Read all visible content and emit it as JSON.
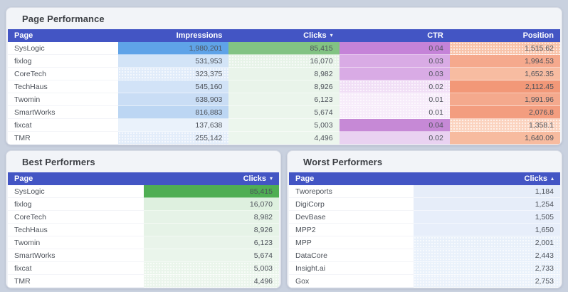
{
  "theme": {
    "page_bg": "#c9d1df",
    "panel_bg": "#f2f4f8",
    "header_bg": "#4355c4",
    "header_text": "#ffffff"
  },
  "page_performance": {
    "title": "Page Performance",
    "columns": [
      {
        "label": "Page"
      },
      {
        "label": "Impressions"
      },
      {
        "label": "Clicks",
        "sort_icon": "▾"
      },
      {
        "label": "CTR"
      },
      {
        "label": "Position"
      }
    ],
    "rows": [
      {
        "page": "SysLogic",
        "impressions": "1,980,201",
        "clicks": "85,415",
        "ctr": "0.04",
        "position": "1,515.62",
        "colors": {
          "impressions": "#5fa3e8",
          "clicks": "#82c383",
          "ctr": "#c583d8",
          "position": "#f8c3aa"
        },
        "dots": [
          "position"
        ]
      },
      {
        "page": "fixlog",
        "impressions": "531,953",
        "clicks": "16,070",
        "ctr": "0.03",
        "position": "1,994.53",
        "colors": {
          "impressions": "#d3e4f7",
          "clicks": "#e7f3e8",
          "ctr": "#d9abe5",
          "position": "#f5a98d"
        },
        "dots": [
          "clicks"
        ]
      },
      {
        "page": "CoreTech",
        "impressions": "323,375",
        "clicks": "8,982",
        "ctr": "0.03",
        "position": "1,652.35",
        "colors": {
          "impressions": "#e1ecfa",
          "clicks": "#e9f4ea",
          "ctr": "#d9abe5",
          "position": "#f7bca1"
        },
        "dots": [
          "impressions"
        ]
      },
      {
        "page": "TechHaus",
        "impressions": "545,160",
        "clicks": "8,926",
        "ctr": "0.02",
        "position": "2,112.45",
        "colors": {
          "impressions": "#d2e3f7",
          "clicks": "#e9f4ea",
          "ctr": "#f1dff6",
          "position": "#f29878"
        },
        "dots": [
          "ctr"
        ]
      },
      {
        "page": "Twomin",
        "impressions": "638,903",
        "clicks": "6,123",
        "ctr": "0.01",
        "position": "1,991.96",
        "colors": {
          "impressions": "#c9ddf5",
          "clicks": "#ebf5ec",
          "ctr": "#f7ecfa",
          "position": "#f4a98d"
        },
        "dots": [
          "ctr"
        ]
      },
      {
        "page": "SmartWorks",
        "impressions": "816,883",
        "clicks": "5,674",
        "ctr": "0.01",
        "position": "2,076.8",
        "colors": {
          "impressions": "#bcd6f3",
          "clicks": "#ebf5ec",
          "ctr": "#f7ecfa",
          "position": "#f39d7f"
        },
        "dots": [
          "ctr"
        ]
      },
      {
        "page": "fixcat",
        "impressions": "137,638",
        "clicks": "5,003",
        "ctr": "0.04",
        "position": "1,358.1",
        "colors": {
          "impressions": "#eaf2fb",
          "clicks": "#ecf6ed",
          "ctr": "#c689d6",
          "position": "#fbd3bf"
        },
        "dots": [
          "position"
        ]
      },
      {
        "page": "TMR",
        "impressions": "255,142",
        "clicks": "4,496",
        "ctr": "0.02",
        "position": "1,640.09",
        "colors": {
          "impressions": "#e3edfa",
          "clicks": "#ecf6ed",
          "ctr": "#e9d2f1",
          "position": "#f7bb9f"
        },
        "dots": [
          "impressions"
        ]
      }
    ]
  },
  "best_performers": {
    "title": "Best Performers",
    "columns": [
      {
        "label": "Page"
      },
      {
        "label": "Clicks",
        "sort_icon": "▾"
      }
    ],
    "rows": [
      {
        "page": "SysLogic",
        "clicks": "85,415",
        "colors": {
          "clicks": "#4fae53"
        }
      },
      {
        "page": "fixlog",
        "clicks": "16,070",
        "colors": {
          "clicks": "#def0df"
        }
      },
      {
        "page": "CoreTech",
        "clicks": "8,982",
        "colors": {
          "clicks": "#e6f3e7"
        }
      },
      {
        "page": "TechHaus",
        "clicks": "8,926",
        "colors": {
          "clicks": "#e6f3e7"
        }
      },
      {
        "page": "Twomin",
        "clicks": "6,123",
        "colors": {
          "clicks": "#e9f4ea"
        }
      },
      {
        "page": "SmartWorks",
        "clicks": "5,674",
        "colors": {
          "clicks": "#eaf5eb"
        }
      },
      {
        "page": "fixcat",
        "clicks": "5,003",
        "colors": {
          "clicks": "#eaf5eb"
        },
        "dots": [
          "clicks"
        ]
      },
      {
        "page": "TMR",
        "clicks": "4,496",
        "colors": {
          "clicks": "#ebf5ec"
        },
        "dots": [
          "clicks"
        ]
      }
    ]
  },
  "worst_performers": {
    "title": "Worst Performers",
    "columns": [
      {
        "label": "Page"
      },
      {
        "label": "Clicks",
        "sort_icon": "▴"
      }
    ],
    "rows": [
      {
        "page": "Tworeports",
        "clicks": "1,184",
        "colors": {
          "clicks": "#e6edf9"
        }
      },
      {
        "page": "DigiCorp",
        "clicks": "1,254",
        "colors": {
          "clicks": "#e6edf9"
        }
      },
      {
        "page": "DevBase",
        "clicks": "1,505",
        "colors": {
          "clicks": "#e7eefa"
        }
      },
      {
        "page": "MPP2",
        "clicks": "1,650",
        "colors": {
          "clicks": "#e7eefa"
        }
      },
      {
        "page": "MPP",
        "clicks": "2,001",
        "colors": {
          "clicks": "#e8f0fa"
        },
        "dots": [
          "clicks"
        ]
      },
      {
        "page": "DataCore",
        "clicks": "2,443",
        "colors": {
          "clicks": "#e9f1fb"
        },
        "dots": [
          "clicks"
        ]
      },
      {
        "page": "Insight.ai",
        "clicks": "2,733",
        "colors": {
          "clicks": "#eaf2fb"
        },
        "dots": [
          "clicks"
        ]
      },
      {
        "page": "Gox",
        "clicks": "2,753",
        "colors": {
          "clicks": "#ebf2fb"
        },
        "dots": [
          "clicks"
        ]
      }
    ]
  }
}
